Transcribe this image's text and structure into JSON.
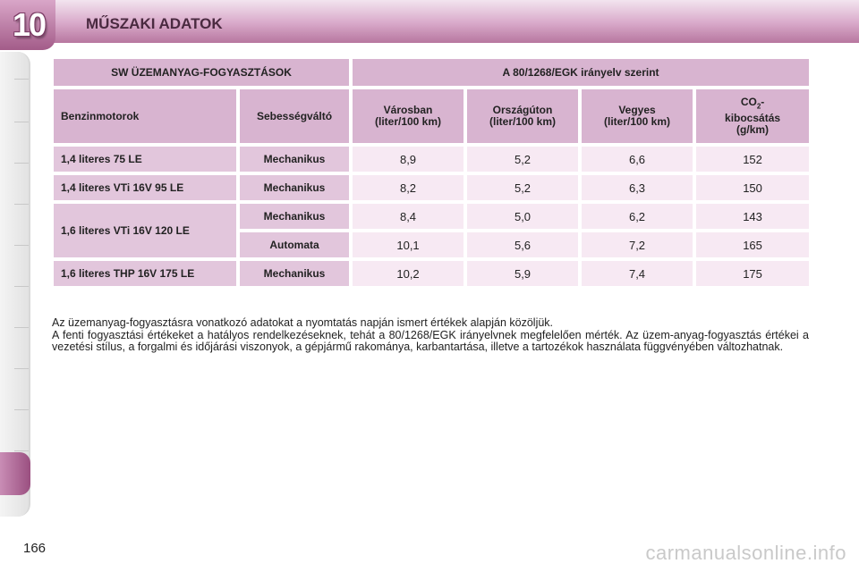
{
  "header": {
    "chapter_number": "10",
    "title": "MŰSZAKI ADATOK"
  },
  "table": {
    "top_left": "SW ÜZEMANYAG-FOGYASZTÁSOK",
    "top_right": "A 80/1268/EGK irányelv szerint",
    "columns": {
      "engine": "Benzinmotorok",
      "gearbox": "Sebességváltó",
      "city": "Városban",
      "city_unit": "(liter/100 km)",
      "highway": "Országúton",
      "highway_unit": "(liter/100 km)",
      "combined": "Vegyes",
      "combined_unit": "(liter/100 km)",
      "co2_prefix": "CO",
      "co2_sub": "2",
      "co2_suffix": "-",
      "co2_line2": "kibocsátás",
      "co2_unit": "(g/km)"
    },
    "rows": [
      {
        "engine": "1,4 literes 75 LE",
        "gearbox": "Mechanikus",
        "city": "8,9",
        "highway": "5,2",
        "combined": "6,6",
        "co2": "152"
      },
      {
        "engine": "1,4 literes VTi 16V 95 LE",
        "gearbox": "Mechanikus",
        "city": "8,2",
        "highway": "5,2",
        "combined": "6,3",
        "co2": "150"
      },
      {
        "engine": "1,6 literes VTi 16V 120 LE",
        "gearbox": "Mechanikus",
        "city": "8,4",
        "highway": "5,0",
        "combined": "6,2",
        "co2": "143"
      },
      {
        "engine": "1,6 literes VTi 16V 120 LE",
        "gearbox": "Automata",
        "city": "10,1",
        "highway": "5,6",
        "combined": "7,2",
        "co2": "165"
      },
      {
        "engine": "1,6 literes THP 16V 175 LE",
        "gearbox": "Mechanikus",
        "city": "10,2",
        "highway": "5,9",
        "combined": "7,4",
        "co2": "175"
      }
    ]
  },
  "notes": {
    "line1": "Az üzemanyag-fogyasztásra vonatkozó adatokat a nyomtatás napján ismert értékek alapján közöljük.",
    "line2": "A fenti fogyasztási értékeket a hatályos rendelkezéseknek, tehát a 80/1268/EGK irányelvnek megfelelően mérték. Az üzem-anyag-fogyasztás értékei a vezetési stílus, a forgalmi és időjárási viszonyok, a gépjármű rakománya, karbantartása, illetve a tartozékok használata függvényében változhatnak."
  },
  "page_number": "166",
  "watermark": "carmanualsonline.info",
  "colors": {
    "header_band": "#b7779f",
    "cell_header": "#d8b4d0",
    "cell_label": "#e2c6dc",
    "cell_value": "#f7e9f3",
    "side_active": "#9a4f80"
  }
}
